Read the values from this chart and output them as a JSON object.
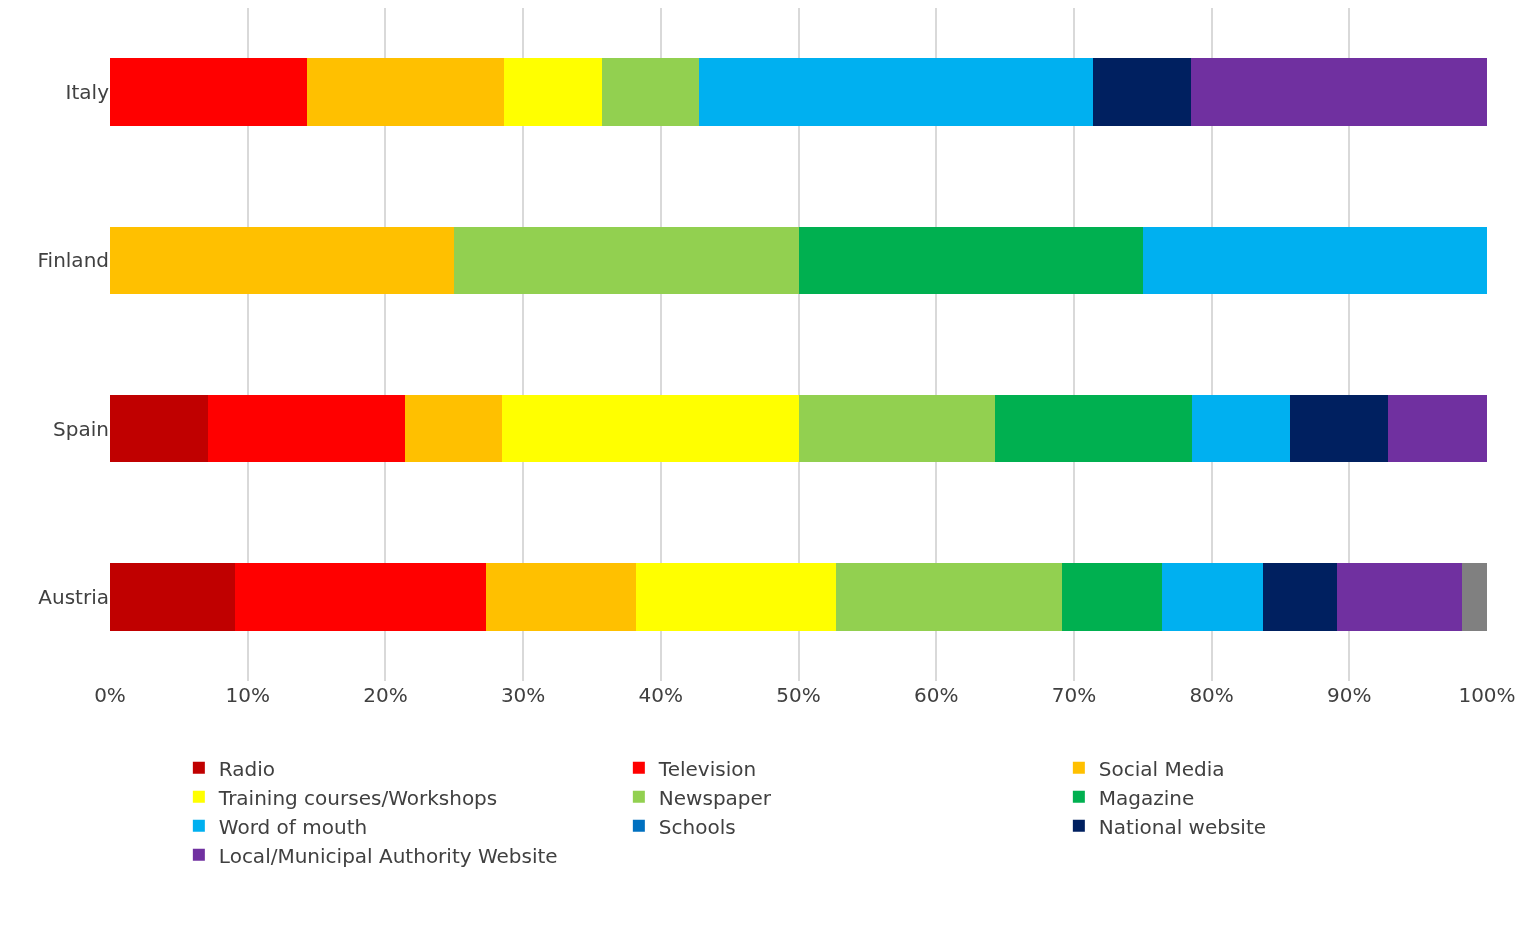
{
  "chart_data": {
    "type": "bar",
    "orientation": "horizontal",
    "stacked": true,
    "categories": [
      "Italy",
      "Finland",
      "Spain",
      "Austria"
    ],
    "series": [
      {
        "name": "Radio",
        "color": "#c00000",
        "values": [
          null,
          null,
          7.1,
          9.1
        ]
      },
      {
        "name": "Television",
        "color": "#ff0000",
        "values": [
          14.3,
          null,
          14.3,
          18.2
        ]
      },
      {
        "name": "Social Media",
        "color": "#ffc000",
        "values": [
          14.3,
          25,
          7.1,
          10.9
        ]
      },
      {
        "name": "Training courses/Workshops",
        "color": "#ffff00",
        "values": [
          7.1,
          null,
          21.5,
          14.5
        ]
      },
      {
        "name": "Newspaper",
        "color": "#92d050",
        "values": [
          7.1,
          25,
          14.3,
          16.4
        ]
      },
      {
        "name": "Magazine",
        "color": "#00b050",
        "values": [
          null,
          25,
          14.3,
          7.3
        ]
      },
      {
        "name": "Word of mouth",
        "color": "#00b0f0",
        "values": [
          28.6,
          25,
          7.1,
          7.3
        ]
      },
      {
        "name": "Schools",
        "color": "#0070c0",
        "values": [
          null,
          null,
          null,
          null
        ]
      },
      {
        "name": "National website",
        "color": "#002060",
        "values": [
          7.1,
          null,
          7.1,
          5.4
        ]
      },
      {
        "name": "Local/Municipal Authority Website",
        "color": "#7030a0",
        "values": [
          21.5,
          null,
          7.2,
          9.1
        ]
      },
      {
        "color": "#808080",
        "values": [
          null,
          null,
          null,
          1.8
        ]
      }
    ],
    "xlim": [
      0,
      100
    ],
    "xticks": [
      {
        "value": 0,
        "label": "0%"
      },
      {
        "value": 10,
        "label": "10%"
      },
      {
        "value": 20,
        "label": "20%"
      },
      {
        "value": 30,
        "label": "30%"
      },
      {
        "value": 40,
        "label": "40%"
      },
      {
        "value": 50,
        "label": "50%"
      },
      {
        "value": 60,
        "label": "60%"
      },
      {
        "value": 70,
        "label": "70%"
      },
      {
        "value": 80,
        "label": "80%"
      },
      {
        "value": 90,
        "label": "90%"
      },
      {
        "value": 100,
        "label": "100%"
      }
    ],
    "grid": "x",
    "legend": "bottom"
  }
}
